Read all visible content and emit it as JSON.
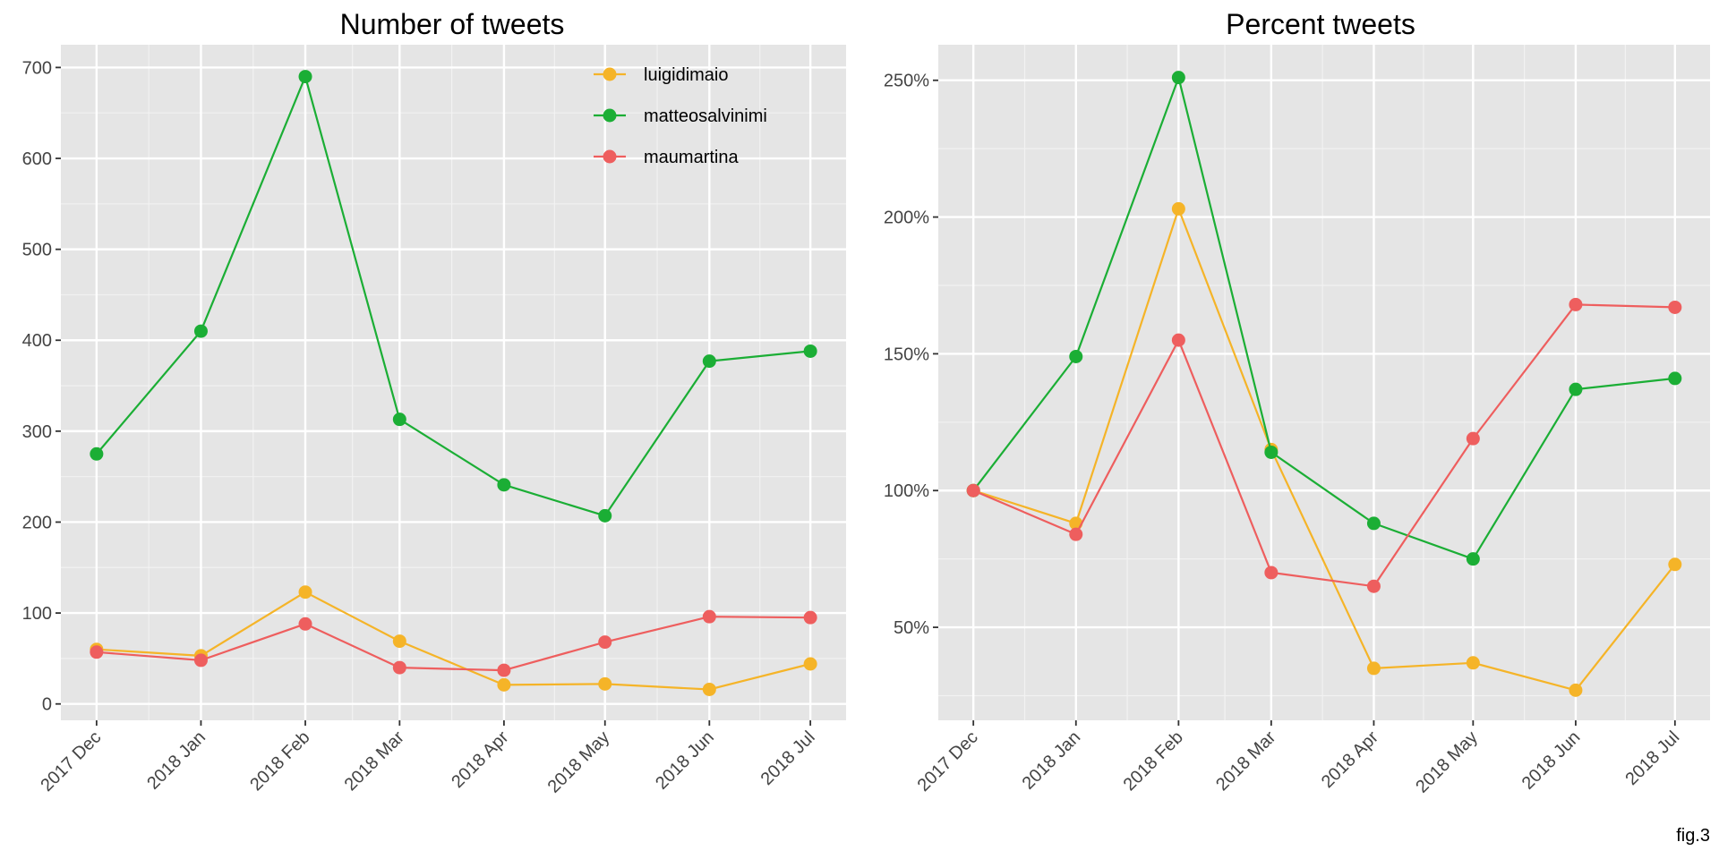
{
  "figure": {
    "caption": "fig.3"
  },
  "chart_data": [
    {
      "type": "line",
      "title": "Number of tweets",
      "xlabel": "",
      "ylabel": "",
      "categories": [
        "2017 Dec",
        "2018 Jan",
        "2018 Feb",
        "2018 Mar",
        "2018 Apr",
        "2018 May",
        "2018 Jun",
        "2018 Jul"
      ],
      "x_days_in_month": [
        31,
        31,
        28,
        31,
        30,
        31,
        30,
        31
      ],
      "ylim": [
        -18,
        725
      ],
      "yticks": [
        0,
        100,
        200,
        300,
        400,
        500,
        600,
        700
      ],
      "ytick_labels": [
        "0",
        "100",
        "200",
        "300",
        "400",
        "500",
        "600",
        "700"
      ],
      "grid": true,
      "legend": "top-right",
      "series": [
        {
          "name": "luigidimaio",
          "color": "#F5B428",
          "values": [
            60,
            53,
            123,
            69,
            21,
            22,
            16,
            44
          ]
        },
        {
          "name": "matteosalvinimi",
          "color": "#1BAE35",
          "values": [
            275,
            410,
            690,
            313,
            241,
            207,
            377,
            388
          ]
        },
        {
          "name": "maumartina",
          "color": "#EE5E5E",
          "values": [
            57,
            48,
            88,
            40,
            37,
            68,
            96,
            95
          ]
        }
      ]
    },
    {
      "type": "line",
      "title": "Percent tweets",
      "xlabel": "",
      "ylabel": "",
      "categories": [
        "2017 Dec",
        "2018 Jan",
        "2018 Feb",
        "2018 Mar",
        "2018 Apr",
        "2018 May",
        "2018 Jun",
        "2018 Jul"
      ],
      "x_days_in_month": [
        31,
        31,
        28,
        31,
        30,
        31,
        30,
        31
      ],
      "ylim": [
        16,
        263
      ],
      "yticks": [
        50,
        100,
        150,
        200,
        250
      ],
      "ytick_labels": [
        "50%",
        "100%",
        "150%",
        "200%",
        "250%"
      ],
      "grid": true,
      "legend": "none",
      "series": [
        {
          "name": "luigidimaio",
          "color": "#F5B428",
          "values": [
            100,
            88,
            203,
            115,
            35,
            37,
            27,
            73
          ]
        },
        {
          "name": "matteosalvinimi",
          "color": "#1BAE35",
          "values": [
            100,
            149,
            251,
            114,
            88,
            75,
            137,
            141
          ]
        },
        {
          "name": "maumartina",
          "color": "#EE5E5E",
          "values": [
            100,
            84,
            155,
            70,
            65,
            119,
            168,
            167
          ]
        }
      ]
    }
  ]
}
